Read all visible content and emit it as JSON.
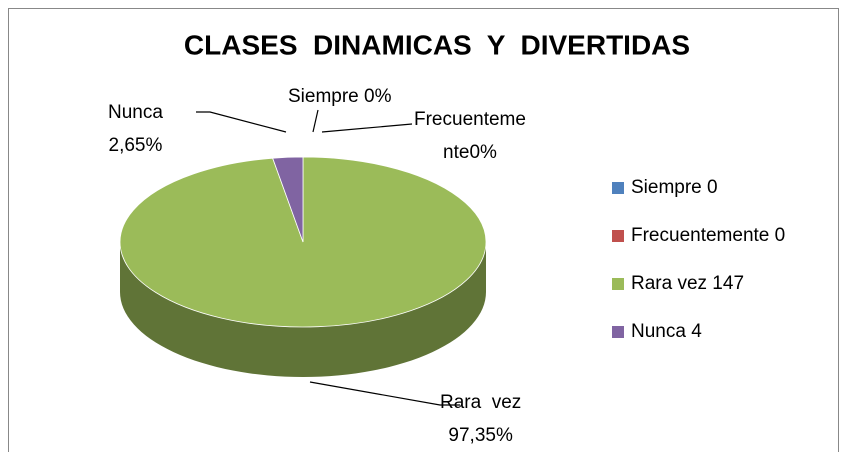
{
  "chart_data": {
    "type": "pie3d",
    "title": "CLASES  DINAMICAS  Y  DIVERTIDAS",
    "categories": [
      "Siempre 0",
      "Frecuentemente 0",
      "Rara vez 147",
      "Nunca 4"
    ],
    "values": [
      0,
      0,
      97.35,
      2.65
    ],
    "value_labels": [
      "Siempre 0%",
      "Frecuenteme\nnte0%",
      "Rara  vez\n97,35%",
      "Nunca\n2,65%"
    ],
    "colors": [
      "#4f81bd",
      "#c0504d",
      "#9bbb59",
      "#8064a2"
    ],
    "legend": "right"
  }
}
